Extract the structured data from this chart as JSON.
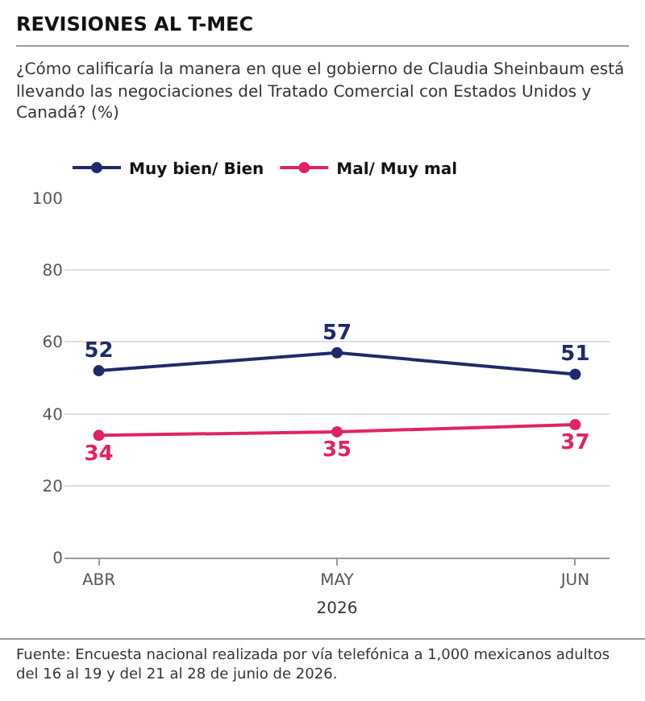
{
  "chart_data": {
    "type": "line",
    "title": "REVISIONES AL T-MEC",
    "subtitle": "¿Cómo calificaría la manera en que el gobierno de Claudia Sheinbaum está llevando las negociaciones del Tratado Comercial con Estados Unidos y Canadá? (%)",
    "xlabel": "2026",
    "categories": [
      "ABR",
      "MAY",
      "JUN"
    ],
    "series": [
      {
        "name": "Muy bien/ Bien",
        "color": "#1f2a6b",
        "values": [
          52,
          57,
          51
        ]
      },
      {
        "name": "Mal/ Muy mal",
        "color": "#e0245e",
        "values": [
          34,
          35,
          37
        ]
      }
    ],
    "ylim": [
      0,
      100
    ],
    "yticks": [
      0,
      20,
      40,
      60,
      80,
      100
    ],
    "grid": "y",
    "legend": "top left",
    "marker": "circle",
    "line_style": "solid",
    "data_labels": true,
    "annotations": [
      "Fuente: Encuesta nacional realizada por vía telefónica a 1,000 mexicanos adultos del 16 al 19 y del 21 al 28 de junio de 2026."
    ]
  }
}
